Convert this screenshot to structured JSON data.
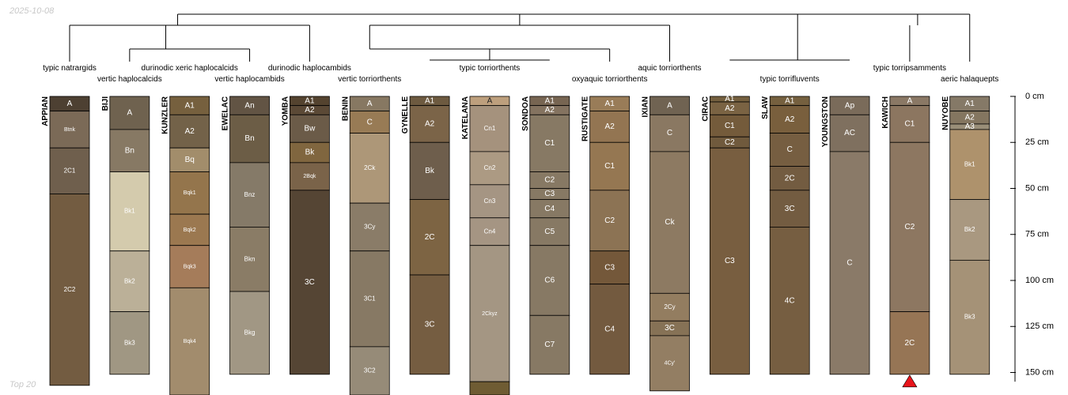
{
  "stamps": {
    "date": "2025-10-08",
    "footer": "Top 20"
  },
  "colors": {
    "line": "#000000",
    "tick": "#000000",
    "trunc_marker": "#e8141b",
    "label_light": "#ffffff",
    "label_dark": "#1e1e1e"
  },
  "chart_data": {
    "type": "soil-profile-sketch",
    "title": "",
    "depth_axis": {
      "unit": "cm",
      "range": [
        0,
        155
      ],
      "ticks": [
        0,
        25,
        50,
        75,
        100,
        125,
        150
      ],
      "tick_labels": [
        "0 cm",
        "25 cm",
        "50 cm",
        "75 cm",
        "100 cm",
        "125 cm",
        "150 cm"
      ]
    },
    "taxonomy": [
      {
        "label": "typic natrargids",
        "row": 1,
        "members": [
          "APPIAN"
        ]
      },
      {
        "label": "vertic haplocalcids",
        "row": 2,
        "members": [
          "BIJI"
        ]
      },
      {
        "label": "durinodic xeric haplocalcids",
        "row": 1,
        "members": [
          "KUNZLER"
        ]
      },
      {
        "label": "vertic haplocambids",
        "row": 2,
        "members": [
          "EWELAC"
        ]
      },
      {
        "label": "durinodic haplocambids",
        "row": 1,
        "members": [
          "YOMBA"
        ]
      },
      {
        "label": "vertic torriorthents",
        "row": 2,
        "members": [
          "BENIN"
        ]
      },
      {
        "label": "typic torriorthents",
        "row": 1,
        "members": [
          "GYNELLE",
          "KATELANA",
          "SONDOA"
        ]
      },
      {
        "label": "oxyaquic torriorthents",
        "row": 2,
        "members": [
          "RUSTIGATE"
        ]
      },
      {
        "label": "aquic torriorthents",
        "row": 1,
        "members": [
          "IXIAN"
        ]
      },
      {
        "label": "typic torrifluvents",
        "row": 2,
        "members": [
          "CIRAC",
          "SLAW",
          "YOUNGSTON"
        ]
      },
      {
        "label": "typic torripsamments",
        "row": 1,
        "members": [
          "KAWICH"
        ]
      },
      {
        "label": "aeric halaquepts",
        "row": 2,
        "members": [
          "NUYOBE"
        ]
      }
    ],
    "profiles": [
      {
        "name": "APPIAN",
        "truncated": false,
        "horizons": [
          {
            "name": "A",
            "top": 0,
            "bottom": 8,
            "color": "#4d4032"
          },
          {
            "name": "Btnk",
            "top": 8,
            "bottom": 28,
            "color": "#7b6a57"
          },
          {
            "name": "2C1",
            "top": 28,
            "bottom": 53,
            "color": "#6f5f4d"
          },
          {
            "name": "2C2",
            "top": 53,
            "bottom": 157,
            "color": "#735c41"
          }
        ]
      },
      {
        "name": "BIJI",
        "truncated": false,
        "horizons": [
          {
            "name": "A",
            "top": 0,
            "bottom": 18,
            "color": "#6f624f"
          },
          {
            "name": "Bn",
            "top": 18,
            "bottom": 41,
            "color": "#877964"
          },
          {
            "name": "Bk1",
            "top": 41,
            "bottom": 84,
            "color": "#d4cbad"
          },
          {
            "name": "Bk2",
            "top": 84,
            "bottom": 117,
            "color": "#bbb098"
          },
          {
            "name": "Bk3",
            "top": 117,
            "bottom": 151,
            "color": "#a09783"
          }
        ]
      },
      {
        "name": "KUNZLER",
        "truncated": false,
        "horizons": [
          {
            "name": "A1",
            "top": 0,
            "bottom": 10,
            "color": "#76603e"
          },
          {
            "name": "A2",
            "top": 10,
            "bottom": 28,
            "color": "#736249"
          },
          {
            "name": "Bq",
            "top": 28,
            "bottom": 41,
            "color": "#a28d6b"
          },
          {
            "name": "Bqk1",
            "top": 41,
            "bottom": 64,
            "color": "#94754c"
          },
          {
            "name": "Bqk2",
            "top": 64,
            "bottom": 81,
            "color": "#9b7850"
          },
          {
            "name": "Bqk3",
            "top": 81,
            "bottom": 104,
            "color": "#a57c5a"
          },
          {
            "name": "Bqk4",
            "top": 104,
            "bottom": 165,
            "color": "#a28c6d"
          }
        ]
      },
      {
        "name": "EWELAC",
        "truncated": false,
        "horizons": [
          {
            "name": "An",
            "top": 0,
            "bottom": 10,
            "color": "#625444"
          },
          {
            "name": "Bn",
            "top": 10,
            "bottom": 36,
            "color": "#6c5d46"
          },
          {
            "name": "Bnz",
            "top": 36,
            "bottom": 71,
            "color": "#857a68"
          },
          {
            "name": "Bkn",
            "top": 71,
            "bottom": 106,
            "color": "#8a7c66"
          },
          {
            "name": "Bkg",
            "top": 106,
            "bottom": 151,
            "color": "#a19784"
          }
        ]
      },
      {
        "name": "YOMBA",
        "truncated": false,
        "horizons": [
          {
            "name": "A1",
            "top": 0,
            "bottom": 5,
            "color": "#54432f"
          },
          {
            "name": "A2",
            "top": 5,
            "bottom": 10,
            "color": "#5b4936"
          },
          {
            "name": "Bw",
            "top": 10,
            "bottom": 25,
            "color": "#6b5b48"
          },
          {
            "name": "Bk",
            "top": 25,
            "bottom": 36,
            "color": "#80663f"
          },
          {
            "name": "2Bqk",
            "top": 36,
            "bottom": 51,
            "color": "#7a6349"
          },
          {
            "name": "3C",
            "top": 51,
            "bottom": 151,
            "color": "#554534"
          }
        ]
      },
      {
        "name": "BENIN",
        "truncated": false,
        "horizons": [
          {
            "name": "A",
            "top": 0,
            "bottom": 8,
            "color": "#877862"
          },
          {
            "name": "C",
            "top": 8,
            "bottom": 20,
            "color": "#987b55"
          },
          {
            "name": "2Ck",
            "top": 20,
            "bottom": 58,
            "color": "#ad9778"
          },
          {
            "name": "3Cy",
            "top": 58,
            "bottom": 84,
            "color": "#8a7c68"
          },
          {
            "name": "3C1",
            "top": 84,
            "bottom": 136,
            "color": "#877964"
          },
          {
            "name": "3C2",
            "top": 136,
            "bottom": 165,
            "color": "#968b78"
          }
        ]
      },
      {
        "name": "GYNELLE",
        "truncated": false,
        "horizons": [
          {
            "name": "A1",
            "top": 0,
            "bottom": 5,
            "color": "#6d5a40"
          },
          {
            "name": "A2",
            "top": 5,
            "bottom": 25,
            "color": "#7b6448"
          },
          {
            "name": "Bk",
            "top": 25,
            "bottom": 56,
            "color": "#6e5e4c"
          },
          {
            "name": "2C",
            "top": 56,
            "bottom": 97,
            "color": "#7d6443"
          },
          {
            "name": "3C",
            "top": 97,
            "bottom": 151,
            "color": "#755d41"
          }
        ]
      },
      {
        "name": "KATELANA",
        "truncated": false,
        "horizons": [
          {
            "name": "A",
            "top": 0,
            "bottom": 5,
            "color": "#bd9f7d",
            "label": "dark"
          },
          {
            "name": "Cn1",
            "top": 5,
            "bottom": 30,
            "color": "#a5927d"
          },
          {
            "name": "Cn2",
            "top": 30,
            "bottom": 48,
            "color": "#ac9a83"
          },
          {
            "name": "Cn3",
            "top": 48,
            "bottom": 66,
            "color": "#a59583"
          },
          {
            "name": "Cn4",
            "top": 66,
            "bottom": 81,
            "color": "#a59583"
          },
          {
            "name": "2Ckyz",
            "top": 81,
            "bottom": 155,
            "color": "#a49683"
          },
          {
            "name": "",
            "top": 155,
            "bottom": 165,
            "color": "#6f5c33"
          }
        ]
      },
      {
        "name": "SONDOA",
        "truncated": false,
        "horizons": [
          {
            "name": "A1",
            "top": 0,
            "bottom": 5,
            "color": "#776552"
          },
          {
            "name": "A2",
            "top": 5,
            "bottom": 10,
            "color": "#847360"
          },
          {
            "name": "C1",
            "top": 10,
            "bottom": 41,
            "color": "#877964"
          },
          {
            "name": "C2",
            "top": 41,
            "bottom": 50,
            "color": "#877964"
          },
          {
            "name": "C3",
            "top": 50,
            "bottom": 56,
            "color": "#877964"
          },
          {
            "name": "C4",
            "top": 56,
            "bottom": 66,
            "color": "#877964"
          },
          {
            "name": "C5",
            "top": 66,
            "bottom": 81,
            "color": "#877964"
          },
          {
            "name": "C6",
            "top": 81,
            "bottom": 119,
            "color": "#877964"
          },
          {
            "name": "C7",
            "top": 119,
            "bottom": 151,
            "color": "#877964"
          }
        ]
      },
      {
        "name": "RUSTIGATE",
        "truncated": false,
        "horizons": [
          {
            "name": "A1",
            "top": 0,
            "bottom": 8,
            "color": "#997c58"
          },
          {
            "name": "A2",
            "top": 8,
            "bottom": 25,
            "color": "#937552"
          },
          {
            "name": "C1",
            "top": 25,
            "bottom": 51,
            "color": "#957752"
          },
          {
            "name": "C2",
            "top": 51,
            "bottom": 84,
            "color": "#8c7354"
          },
          {
            "name": "C3",
            "top": 84,
            "bottom": 102,
            "color": "#74583a"
          },
          {
            "name": "C4",
            "top": 102,
            "bottom": 151,
            "color": "#735a3f"
          }
        ]
      },
      {
        "name": "IXIAN",
        "truncated": false,
        "horizons": [
          {
            "name": "A",
            "top": 0,
            "bottom": 10,
            "color": "#706352"
          },
          {
            "name": "C",
            "top": 10,
            "bottom": 30,
            "color": "#8a7862"
          },
          {
            "name": "Ck",
            "top": 30,
            "bottom": 107,
            "color": "#8d7a62"
          },
          {
            "name": "2Cy",
            "top": 107,
            "bottom": 122,
            "color": "#937d60"
          },
          {
            "name": "3C",
            "top": 122,
            "bottom": 130,
            "color": "#867256"
          },
          {
            "name": "4Cy'",
            "top": 130,
            "bottom": 160,
            "color": "#937e63"
          }
        ]
      },
      {
        "name": "CIRAC",
        "truncated": false,
        "horizons": [
          {
            "name": "A1",
            "top": 0,
            "bottom": 3,
            "color": "#75603f"
          },
          {
            "name": "A2",
            "top": 3,
            "bottom": 10,
            "color": "#7a6343"
          },
          {
            "name": "C1",
            "top": 10,
            "bottom": 22,
            "color": "#745b3b"
          },
          {
            "name": "C2",
            "top": 22,
            "bottom": 28,
            "color": "#705a3d"
          },
          {
            "name": "C3",
            "top": 28,
            "bottom": 151,
            "color": "#785e40"
          }
        ]
      },
      {
        "name": "SLAW",
        "truncated": false,
        "horizons": [
          {
            "name": "A1",
            "top": 0,
            "bottom": 5,
            "color": "#75603f"
          },
          {
            "name": "A2",
            "top": 5,
            "bottom": 20,
            "color": "#795f3d"
          },
          {
            "name": "C",
            "top": 20,
            "bottom": 38,
            "color": "#765e41"
          },
          {
            "name": "2C",
            "top": 38,
            "bottom": 51,
            "color": "#735c41"
          },
          {
            "name": "3C",
            "top": 51,
            "bottom": 71,
            "color": "#735c41"
          },
          {
            "name": "4C",
            "top": 71,
            "bottom": 151,
            "color": "#765e41"
          }
        ]
      },
      {
        "name": "YOUNGSTON",
        "truncated": false,
        "horizons": [
          {
            "name": "Ap",
            "top": 0,
            "bottom": 10,
            "color": "#7a6b5a"
          },
          {
            "name": "AC",
            "top": 10,
            "bottom": 30,
            "color": "#7f705f"
          },
          {
            "name": "C",
            "top": 30,
            "bottom": 151,
            "color": "#8a7a68"
          }
        ]
      },
      {
        "name": "KAWICH",
        "truncated": true,
        "horizons": [
          {
            "name": "A",
            "top": 0,
            "bottom": 5,
            "color": "#8a7865"
          },
          {
            "name": "C1",
            "top": 5,
            "bottom": 25,
            "color": "#8c7660"
          },
          {
            "name": "C2",
            "top": 25,
            "bottom": 117,
            "color": "#8d7761"
          },
          {
            "name": "2C",
            "top": 117,
            "bottom": 151,
            "color": "#967555"
          }
        ]
      },
      {
        "name": "NUYOBE",
        "truncated": false,
        "horizons": [
          {
            "name": "A1",
            "top": 0,
            "bottom": 8,
            "color": "#857967"
          },
          {
            "name": "A2",
            "top": 8,
            "bottom": 15,
            "color": "#847660"
          },
          {
            "name": "A3",
            "top": 15,
            "bottom": 18,
            "color": "#998e78"
          },
          {
            "name": "Bk1",
            "top": 18,
            "bottom": 56,
            "color": "#ae926c"
          },
          {
            "name": "Bk2",
            "top": 56,
            "bottom": 89,
            "color": "#a99880"
          },
          {
            "name": "Bk3",
            "top": 89,
            "bottom": 151,
            "color": "#a59277"
          }
        ]
      }
    ]
  }
}
